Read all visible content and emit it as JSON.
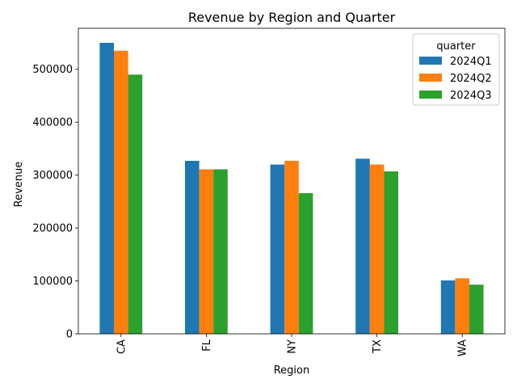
{
  "chart_data": {
    "type": "bar",
    "title": "Revenue by Region and Quarter",
    "xlabel": "Region",
    "ylabel": "Revenue",
    "categories": [
      "CA",
      "FL",
      "NY",
      "TX",
      "WA"
    ],
    "series": [
      {
        "name": "2024Q1",
        "color": "#1f77b4",
        "values": [
          550000,
          327000,
          320000,
          331000,
          101000
        ]
      },
      {
        "name": "2024Q2",
        "color": "#ff7f0e",
        "values": [
          535000,
          311000,
          327000,
          320000,
          105000
        ]
      },
      {
        "name": "2024Q3",
        "color": "#2ca02c",
        "values": [
          490000,
          311000,
          266000,
          307000,
          93000
        ]
      }
    ],
    "ylim": [
      0,
      577500
    ],
    "yticks": [
      0,
      100000,
      200000,
      300000,
      400000,
      500000
    ],
    "legend": {
      "title": "quarter",
      "location": "top-right"
    },
    "grid": false
  }
}
